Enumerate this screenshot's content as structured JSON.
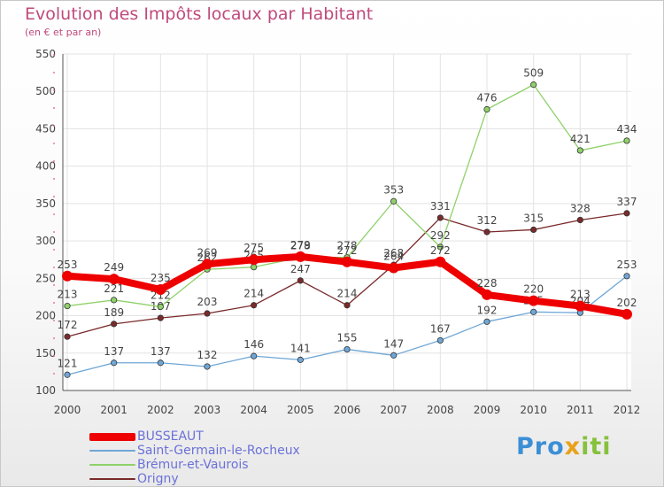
{
  "chart_data": {
    "type": "line",
    "title": "Evolution des Impôts locaux par Habitant",
    "subtitle": "(en € et par an)",
    "xlabel": "",
    "ylabel": "",
    "ylim": [
      100,
      550
    ],
    "yticks": [
      100,
      150,
      200,
      250,
      300,
      350,
      400,
      450,
      500,
      550
    ],
    "categories": [
      "2000",
      "2001",
      "2002",
      "2003",
      "2004",
      "2005",
      "2006",
      "2007",
      "2008",
      "2009",
      "2010",
      "2011",
      "2012"
    ],
    "legend_position": "bottom-left",
    "series": [
      {
        "name": "Origny",
        "color": "#7a2a2a",
        "values": [
          172,
          189,
          197,
          203,
          214,
          247,
          214,
          268,
          331,
          312,
          315,
          328,
          337
        ]
      },
      {
        "name": "Brémur-et-Vaurois",
        "color": "#8fd16a",
        "values": [
          213,
          221,
          212,
          262,
          265,
          278,
          278,
          353,
          292,
          476,
          509,
          421,
          434
        ]
      },
      {
        "name": "Saint-Germain-le-Rocheux",
        "color": "#6fa7d6",
        "values": [
          121,
          137,
          137,
          132,
          146,
          141,
          155,
          147,
          167,
          192,
          205,
          204,
          253
        ]
      },
      {
        "name": "BUSSEAUT",
        "color": "#ee0000",
        "values": [
          253,
          249,
          235,
          269,
          275,
          279,
          272,
          264,
          272,
          228,
          220,
          213,
          202
        ]
      }
    ],
    "legend_order": [
      "BUSSEAUT",
      "Saint-Germain-le-Rocheux",
      "Brémur-et-Vaurois",
      "Origny"
    ]
  },
  "logo": {
    "part1": "Pro",
    "part2": "x",
    "part3": "iti"
  }
}
